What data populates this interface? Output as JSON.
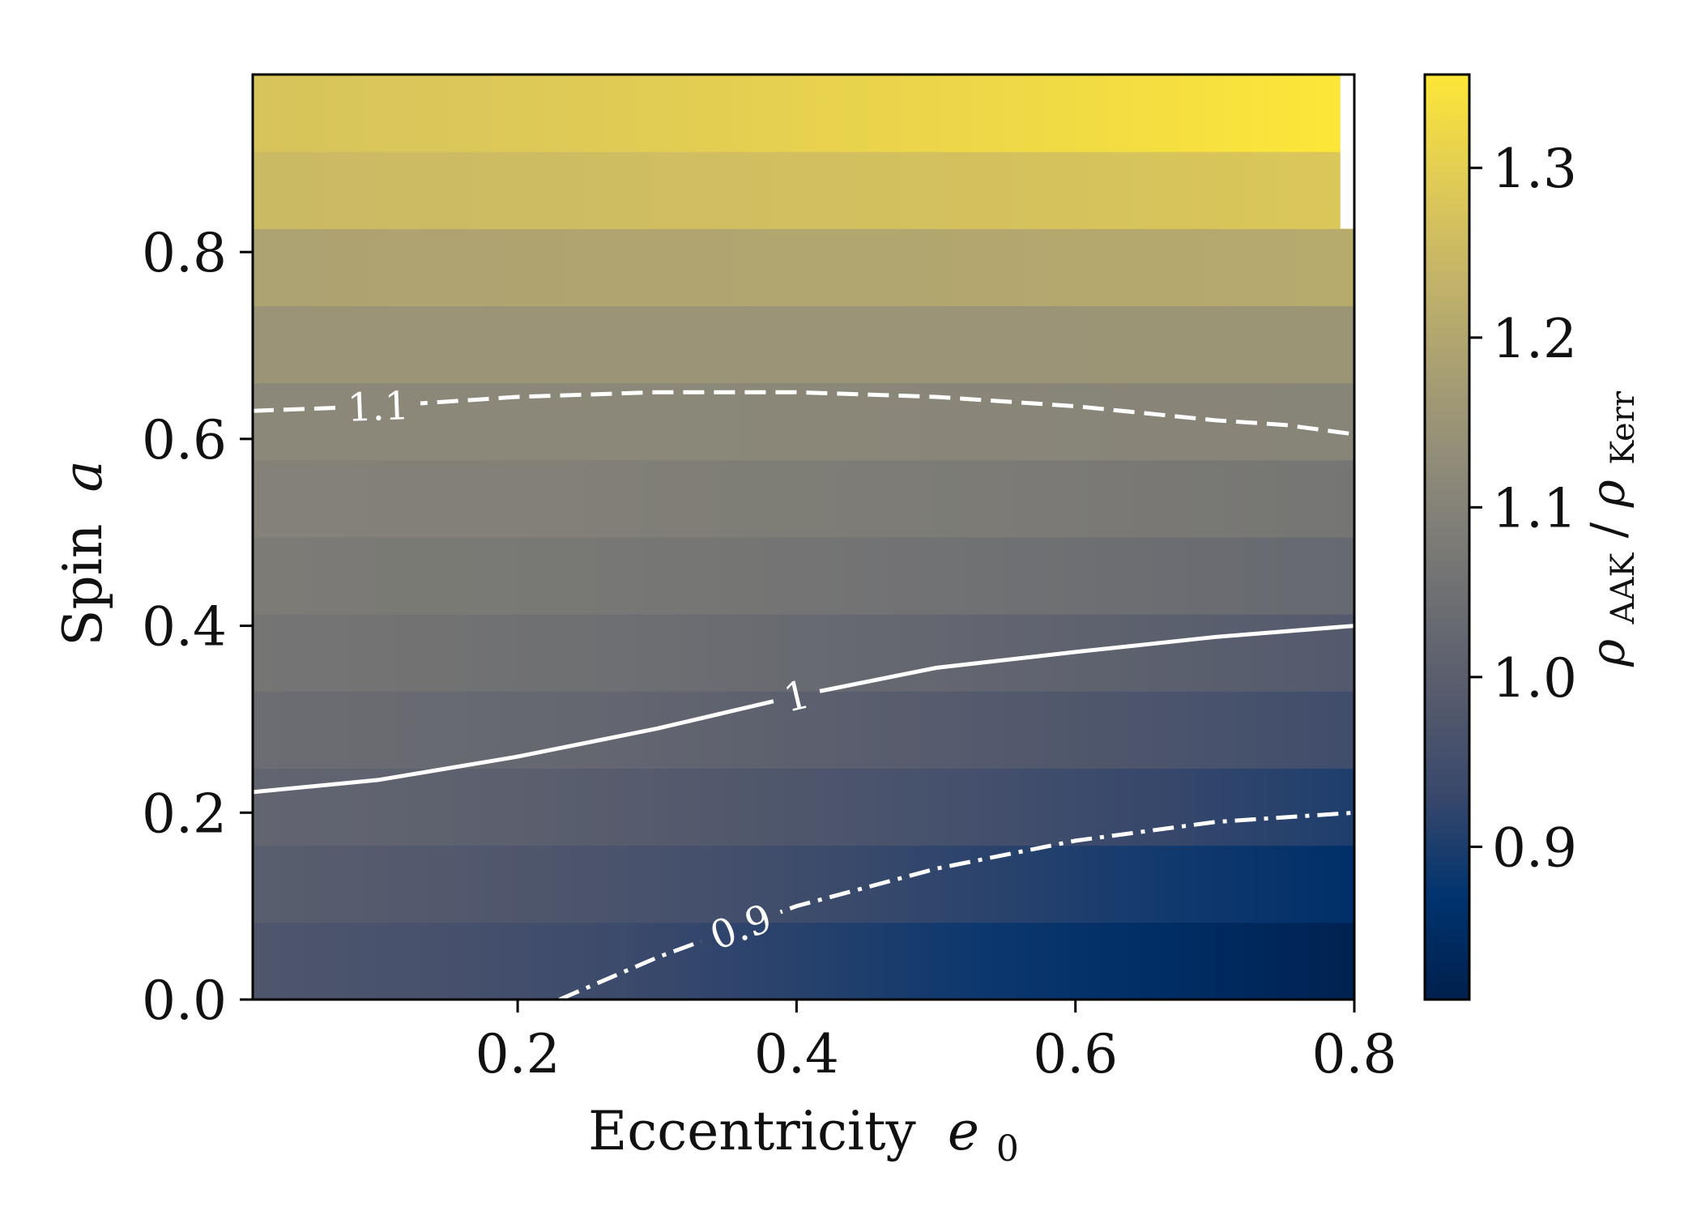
{
  "chart_data": {
    "type": "heatmap",
    "xlabel": "Eccentricity",
    "xlabel_symbol": "e",
    "xlabel_subscript": "0",
    "ylabel": "Spin",
    "ylabel_symbol": "a",
    "colorbar_label": "ρAAK/ρKerr",
    "colorbar_label_parts": [
      "ρ",
      "AAK",
      "/",
      "ρ",
      "Kerr"
    ],
    "xlim": [
      0.01,
      0.8
    ],
    "ylim": [
      0.0,
      0.99
    ],
    "x_ticks": [
      {
        "value": 0.2,
        "label": "0.2"
      },
      {
        "value": 0.4,
        "label": "0.4"
      },
      {
        "value": 0.6,
        "label": "0.6"
      },
      {
        "value": 0.8,
        "label": "0.8"
      }
    ],
    "y_ticks": [
      {
        "value": 0.0,
        "label": "0.0"
      },
      {
        "value": 0.2,
        "label": "0.2"
      },
      {
        "value": 0.4,
        "label": "0.4"
      },
      {
        "value": 0.6,
        "label": "0.6"
      },
      {
        "value": 0.8,
        "label": "0.8"
      }
    ],
    "colorbar": {
      "range": [
        0.81,
        1.355
      ],
      "ticks": [
        {
          "value": 0.9,
          "label": "0.9"
        },
        {
          "value": 1.0,
          "label": "1.0"
        },
        {
          "value": 1.1,
          "label": "1.1"
        },
        {
          "value": 1.2,
          "label": "1.2"
        },
        {
          "value": 1.3,
          "label": "1.3"
        }
      ],
      "colormap": "cividis",
      "colormap_stops": [
        "#00204d",
        "#00336f",
        "#39486b",
        "#575c6d",
        "#707173",
        "#8a8779",
        "#a59c74",
        "#c3b369",
        "#e1cc55",
        "#fde737"
      ]
    },
    "grid": false,
    "grid_data": {
      "spin_bands": [
        {
          "a": [
            0.0,
            0.0825
          ],
          "left": 0.973,
          "right": 0.817
        },
        {
          "a": [
            0.0825,
            0.165
          ],
          "left": 0.996,
          "right": 0.858
        },
        {
          "a": [
            0.165,
            0.2475
          ],
          "left": 1.019,
          "right": 0.902
        },
        {
          "a": [
            0.2475,
            0.33
          ],
          "left": 1.042,
          "right": 0.946
        },
        {
          "a": [
            0.33,
            0.4125
          ],
          "left": 1.063,
          "right": 0.985
        },
        {
          "a": [
            0.4125,
            0.495
          ],
          "left": 1.081,
          "right": 1.03
        },
        {
          "a": [
            0.495,
            0.5775
          ],
          "left": 1.099,
          "right": 1.065
        },
        {
          "a": [
            0.5775,
            0.66
          ],
          "left": 1.117,
          "right": 1.105
        },
        {
          "a": [
            0.66,
            0.7425
          ],
          "left": 1.151,
          "right": 1.152
        },
        {
          "a": [
            0.7425,
            0.825
          ],
          "left": 1.19,
          "right": 1.21
        },
        {
          "a": [
            0.825,
            0.9075
          ],
          "left": 1.25,
          "right": 1.282
        },
        {
          "a": [
            0.9075,
            0.99
          ],
          "left": 1.275,
          "right": 1.355
        }
      ],
      "blank_region": {
        "e": [
          0.79,
          0.8
        ],
        "a": [
          0.825,
          0.99
        ]
      }
    },
    "contours": [
      {
        "level": 1.1,
        "label": "1.1",
        "style": "dashed",
        "x": [
          0.01,
          0.1,
          0.2,
          0.3,
          0.4,
          0.5,
          0.6,
          0.7,
          0.75,
          0.8
        ],
        "y": [
          0.63,
          0.635,
          0.645,
          0.65,
          0.65,
          0.645,
          0.635,
          0.62,
          0.615,
          0.605
        ]
      },
      {
        "level": 1.0,
        "label": "1",
        "style": "solid",
        "x": [
          0.01,
          0.1,
          0.2,
          0.3,
          0.4,
          0.5,
          0.6,
          0.7,
          0.8
        ],
        "y": [
          0.222,
          0.235,
          0.26,
          0.29,
          0.325,
          0.355,
          0.372,
          0.388,
          0.4
        ]
      },
      {
        "level": 0.9,
        "label": "0.9",
        "style": "dashdot",
        "x": [
          0.23,
          0.3,
          0.4,
          0.5,
          0.6,
          0.7,
          0.8
        ],
        "y": [
          0.0,
          0.045,
          0.1,
          0.14,
          0.17,
          0.19,
          0.2
        ]
      }
    ]
  }
}
